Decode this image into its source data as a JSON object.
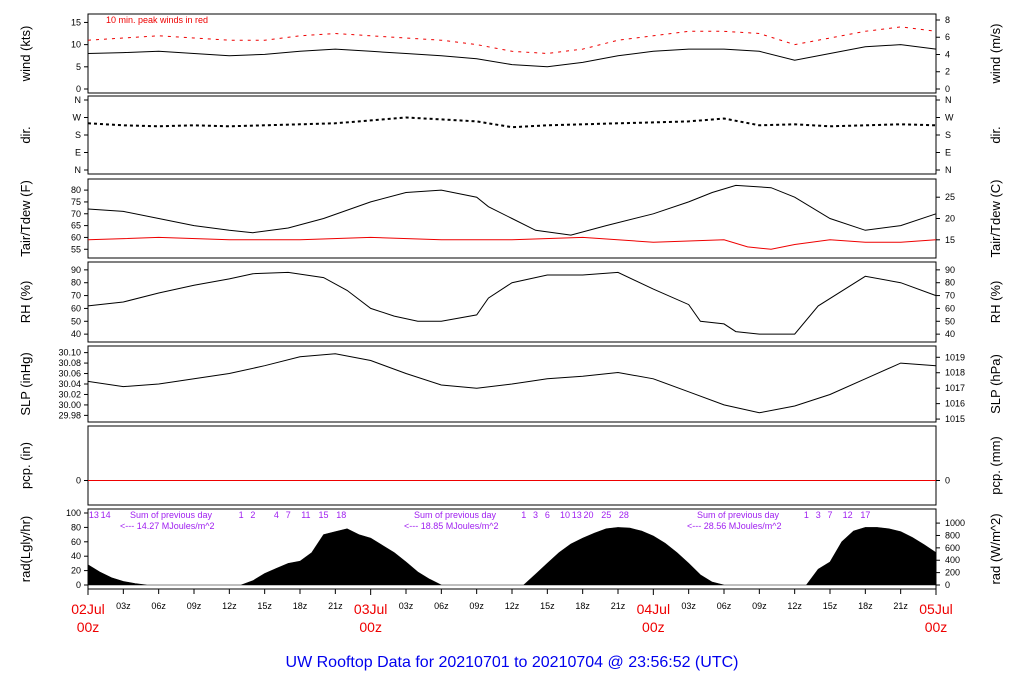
{
  "title": "UW Rooftop Data for 20210701  to  20210704 @ 23:56:52  (UTC)",
  "colors": {
    "red": "#ee0000",
    "purple": "#a020f0",
    "blue": "#0000ee",
    "black": "#000000"
  },
  "chart_data": {
    "type": "line",
    "x_axis": {
      "tick_labels": [
        "03z",
        "06z",
        "09z",
        "12z",
        "15z",
        "18z",
        "21z",
        "03z",
        "06z",
        "09z",
        "12z",
        "15z",
        "18z",
        "21z",
        "03z",
        "06z",
        "09z",
        "12z",
        "15z",
        "18z",
        "21z"
      ],
      "day_labels": [
        {
          "date": "02Jul",
          "time": "00z"
        },
        {
          "date": "03Jul",
          "time": "00z"
        },
        {
          "date": "04Jul",
          "time": "00z"
        },
        {
          "date": "05Jul",
          "time": "00z"
        }
      ],
      "range_hours": [
        0,
        72
      ]
    },
    "panels": [
      {
        "id": "wind",
        "left_label": "wind (kts)",
        "right_label": "wind (m/s)",
        "left_ticks": [
          "0",
          "5",
          "10",
          "15"
        ],
        "right_ticks": [
          "0",
          "2",
          "4",
          "6",
          "8"
        ],
        "ylim": [
          0,
          16
        ],
        "annotation": "10 min. peak winds in red",
        "series": [
          {
            "color": "black",
            "x": [
              0,
              3,
              6,
              9,
              12,
              15,
              18,
              21,
              24,
              27,
              30,
              33,
              36,
              39,
              42,
              45,
              48,
              51,
              54,
              57,
              60,
              63,
              66,
              69,
              72
            ],
            "y": [
              8,
              8.2,
              8.5,
              8,
              7.5,
              7.8,
              8.5,
              9,
              8.5,
              8,
              7.5,
              6.8,
              5.5,
              5,
              6,
              7.5,
              8.5,
              9,
              9,
              8.5,
              6.5,
              8,
              9.5,
              10,
              9
            ]
          },
          {
            "color": "red",
            "x": [
              0,
              3,
              6,
              9,
              12,
              15,
              18,
              21,
              24,
              27,
              30,
              33,
              36,
              39,
              42,
              45,
              48,
              51,
              54,
              57,
              60,
              63,
              66,
              69,
              72
            ],
            "y": [
              11,
              11.5,
              12,
              11.5,
              11,
              11,
              12,
              12.5,
              12,
              11.5,
              11,
              10,
              8.5,
              8,
              9,
              11,
              12,
              13,
              13,
              12.5,
              10,
              11.5,
              13,
              14,
              13
            ]
          }
        ]
      },
      {
        "id": "dir",
        "left_label": "dir.",
        "right_label": "dir.",
        "left_ticks": [
          "N",
          "W",
          "S",
          "E",
          "N"
        ],
        "right_ticks": [
          "N",
          "W",
          "S",
          "E",
          "N"
        ],
        "ylim": [
          0,
          360
        ],
        "series": [
          {
            "color": "black",
            "x": [
              0,
              3,
              6,
              9,
              12,
              15,
              18,
              21,
              24,
              27,
              30,
              33,
              36,
              39,
              42,
              45,
              48,
              51,
              54,
              57,
              60,
              63,
              66,
              69,
              72
            ],
            "y": [
              240,
              230,
              225,
              230,
              225,
              230,
              235,
              240,
              255,
              270,
              260,
              250,
              220,
              230,
              235,
              240,
              245,
              250,
              265,
              230,
              235,
              225,
              230,
              235,
              230
            ]
          }
        ]
      },
      {
        "id": "temp",
        "left_label": "Tair/Tdew (F)",
        "right_label": "Tair/Tdew (C)",
        "left_ticks": [
          "55",
          "60",
          "65",
          "70",
          "75",
          "80"
        ],
        "right_ticks": [
          "15",
          "20",
          "25"
        ],
        "ylim": [
          53,
          83
        ],
        "series": [
          {
            "name": "Tair",
            "color": "black",
            "x": [
              0,
              3,
              6,
              9,
              12,
              14,
              17,
              20,
              24,
              27,
              30,
              33,
              34,
              36,
              38,
              41,
              44,
              48,
              51,
              53,
              55,
              58,
              60,
              63,
              66,
              69,
              72
            ],
            "y": [
              72,
              71,
              68,
              65,
              63,
              62,
              64,
              68,
              75,
              79,
              80,
              77,
              73,
              68,
              63,
              61,
              65,
              70,
              75,
              79,
              82,
              81,
              77,
              68,
              63,
              65,
              70
            ]
          },
          {
            "name": "Tdew",
            "color": "red",
            "x": [
              0,
              6,
              12,
              18,
              24,
              30,
              36,
              42,
              48,
              54,
              56,
              58,
              60,
              63,
              66,
              69,
              72
            ],
            "y": [
              59,
              60,
              59,
              59,
              60,
              59,
              59,
              60,
              58,
              59,
              56,
              55,
              57,
              59,
              58,
              58,
              59
            ]
          }
        ]
      },
      {
        "id": "rh",
        "left_label": "RH (%)",
        "right_label": "RH (%)",
        "left_ticks": [
          "40",
          "50",
          "60",
          "70",
          "80",
          "90"
        ],
        "right_ticks": [
          "40",
          "50",
          "60",
          "70",
          "80",
          "90"
        ],
        "ylim": [
          37,
          93
        ],
        "series": [
          {
            "color": "black",
            "x": [
              0,
              3,
              6,
              9,
              12,
              14,
              17,
              20,
              22,
              24,
              26,
              28,
              30,
              33,
              34,
              36,
              39,
              42,
              45,
              48,
              51,
              52,
              54,
              55,
              57,
              60,
              62,
              66,
              69,
              72
            ],
            "y": [
              62,
              65,
              72,
              78,
              83,
              87,
              88,
              84,
              74,
              60,
              54,
              50,
              50,
              55,
              68,
              80,
              86,
              86,
              88,
              75,
              63,
              50,
              48,
              42,
              40,
              40,
              62,
              85,
              80,
              70
            ]
          }
        ]
      },
      {
        "id": "slp",
        "left_label": "SLP (inHg)",
        "right_label": "SLP (hPa)",
        "left_ticks": [
          "29.98",
          "30.00",
          "30.02",
          "30.04",
          "30.06",
          "30.08",
          "30.10"
        ],
        "right_ticks": [
          "1015",
          "1016",
          "1017",
          "1018",
          "1019"
        ],
        "ylim": [
          29.975,
          30.105
        ],
        "series": [
          {
            "color": "black",
            "x": [
              0,
              3,
              6,
              9,
              12,
              15,
              18,
              21,
              24,
              27,
              30,
              33,
              36,
              39,
              42,
              45,
              48,
              51,
              54,
              57,
              60,
              63,
              66,
              69,
              72
            ],
            "y": [
              30.045,
              30.035,
              30.04,
              30.05,
              30.06,
              30.075,
              30.092,
              30.098,
              30.085,
              30.06,
              30.038,
              30.032,
              30.04,
              30.05,
              30.055,
              30.062,
              30.05,
              30.025,
              30.0,
              29.985,
              29.998,
              30.02,
              30.05,
              30.08,
              30.075
            ]
          }
        ]
      },
      {
        "id": "pcp",
        "left_label": "pcp. (in)",
        "right_label": "pcp. (mm)",
        "left_ticks": [
          "0"
        ],
        "right_ticks": [
          "0"
        ],
        "ylim": [
          -1,
          1
        ],
        "series": [
          {
            "color": "red",
            "x": [
              0,
              72
            ],
            "y": [
              0,
              0
            ]
          }
        ]
      },
      {
        "id": "rad",
        "left_label": "rad(Lgly/hr)",
        "right_label": "rad (W/m^2)",
        "left_ticks": [
          "0",
          "20",
          "40",
          "60",
          "80",
          "100"
        ],
        "right_ticks": [
          "0",
          "200",
          "400",
          "600",
          "800",
          "1000"
        ],
        "ylim": [
          0,
          100
        ],
        "series": [
          {
            "color": "black",
            "type": "area",
            "x": [
              0,
              1,
              2,
              3,
              4,
              5,
              13,
              14,
              15,
              16,
              17,
              18,
              19,
              20,
              21,
              22,
              23,
              24,
              25,
              26,
              27,
              28,
              29,
              30,
              37,
              38,
              39,
              40,
              41,
              42,
              43,
              44,
              45,
              46,
              47,
              48,
              49,
              50,
              51,
              52,
              53,
              54,
              61,
              62,
              63,
              64,
              65,
              66,
              67,
              68,
              69,
              70,
              71,
              72
            ],
            "y": [
              28,
              18,
              10,
              5,
              2,
              0,
              0,
              6,
              16,
              23,
              30,
              33,
              45,
              70,
              74,
              78,
              70,
              65,
              55,
              45,
              32,
              18,
              8,
              0,
              0,
              15,
              30,
              45,
              57,
              65,
              72,
              78,
              80,
              79,
              75,
              68,
              58,
              45,
              30,
              14,
              4,
              0,
              0,
              22,
              32,
              60,
              75,
              80,
              80,
              78,
              74,
              66,
              56,
              45
            ]
          }
        ],
        "day_summaries": [
          {
            "text": "Sum of previous day",
            "value": "<--- 14.27 MJoules/m^2"
          },
          {
            "text": "Sum of previous day",
            "value": "<--- 18.85 MJoules/m^2"
          },
          {
            "text": "Sum of previous day",
            "value": "<--- 28.56 MJoules/m^2"
          }
        ],
        "hour_markers": [
          {
            "label": "13",
            "x": 0.5
          },
          {
            "label": "14",
            "x": 1.5
          },
          {
            "label": "1",
            "x": 13
          },
          {
            "label": "2",
            "x": 14
          },
          {
            "label": "4",
            "x": 16
          },
          {
            "label": "7",
            "x": 17
          },
          {
            "label": "11",
            "x": 18.5
          },
          {
            "label": "15",
            "x": 20
          },
          {
            "label": "18",
            "x": 21.5
          },
          {
            "label": "1",
            "x": 37
          },
          {
            "label": "3",
            "x": 38
          },
          {
            "label": "6",
            "x": 39
          },
          {
            "label": "10",
            "x": 40.5
          },
          {
            "label": "13",
            "x": 41.5
          },
          {
            "label": "20",
            "x": 42.5
          },
          {
            "label": "25",
            "x": 44
          },
          {
            "label": "28",
            "x": 45.5
          },
          {
            "label": "1",
            "x": 61
          },
          {
            "label": "3",
            "x": 62
          },
          {
            "label": "7",
            "x": 63
          },
          {
            "label": "12",
            "x": 64.5
          },
          {
            "label": "17",
            "x": 66
          }
        ]
      }
    ]
  }
}
